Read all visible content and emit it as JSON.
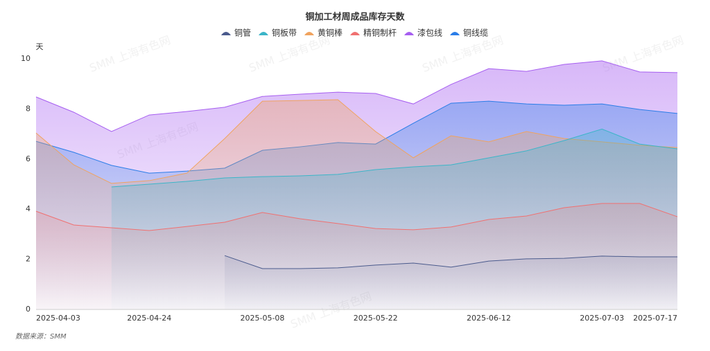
{
  "chart_data": {
    "type": "area",
    "title": "铜加工材周成品库存天数",
    "y_label": "天",
    "source": "数据来源：SMM",
    "watermark": "SMM 上海有色网",
    "categories": [
      "2025-04-03",
      null,
      null,
      "2025-04-24",
      null,
      null,
      "2025-05-08",
      null,
      null,
      "2025-05-22",
      null,
      null,
      "2025-06-12",
      null,
      null,
      "2025-07-03",
      null,
      "2025-07-17"
    ],
    "series": [
      {
        "name": "铜管",
        "color": "#4a5a8c",
        "values": [
          null,
          null,
          null,
          null,
          null,
          2.15,
          1.63,
          1.63,
          1.66,
          1.77,
          1.85,
          1.69,
          1.93,
          2.02,
          2.04,
          2.13,
          2.1,
          2.1
        ]
      },
      {
        "name": "铜板带",
        "color": "#3bb5c8",
        "values": [
          null,
          null,
          4.89,
          5.0,
          5.11,
          5.25,
          5.3,
          5.33,
          5.39,
          5.58,
          5.69,
          5.77,
          6.05,
          6.33,
          6.74,
          7.2,
          6.6,
          6.41
        ]
      },
      {
        "name": "黄铜棒",
        "color": "#f0a35e",
        "values": [
          7.04,
          5.77,
          5.03,
          5.14,
          5.44,
          6.82,
          8.31,
          8.34,
          8.37,
          7.1,
          6.05,
          6.93,
          6.69,
          7.1,
          6.82,
          6.69,
          6.55,
          6.46
        ]
      },
      {
        "name": "精铜制杆",
        "color": "#f07070",
        "values": [
          3.92,
          3.37,
          3.26,
          3.15,
          3.31,
          3.48,
          3.87,
          3.62,
          3.43,
          3.23,
          3.18,
          3.29,
          3.59,
          3.73,
          4.06,
          4.23,
          4.23,
          3.7
        ]
      },
      {
        "name": "漆包线",
        "color": "#a65ef0",
        "values": [
          8.48,
          7.87,
          7.1,
          7.76,
          7.9,
          8.07,
          8.5,
          8.59,
          8.67,
          8.62,
          8.2,
          8.98,
          9.61,
          9.5,
          9.78,
          9.92,
          9.48,
          9.45
        ]
      },
      {
        "name": "铜线缆",
        "color": "#2a7de8",
        "values": [
          6.71,
          6.27,
          5.75,
          5.44,
          5.52,
          5.64,
          6.35,
          6.49,
          6.66,
          6.6,
          7.43,
          8.23,
          8.31,
          8.2,
          8.15,
          8.2,
          7.98,
          7.82
        ]
      }
    ],
    "draw_order": [
      4,
      5,
      2,
      1,
      3,
      0
    ],
    "ylim": [
      0,
      10
    ],
    "yticks": [
      0,
      2,
      4,
      6,
      8,
      10
    ],
    "grid": false,
    "legend": "top"
  }
}
